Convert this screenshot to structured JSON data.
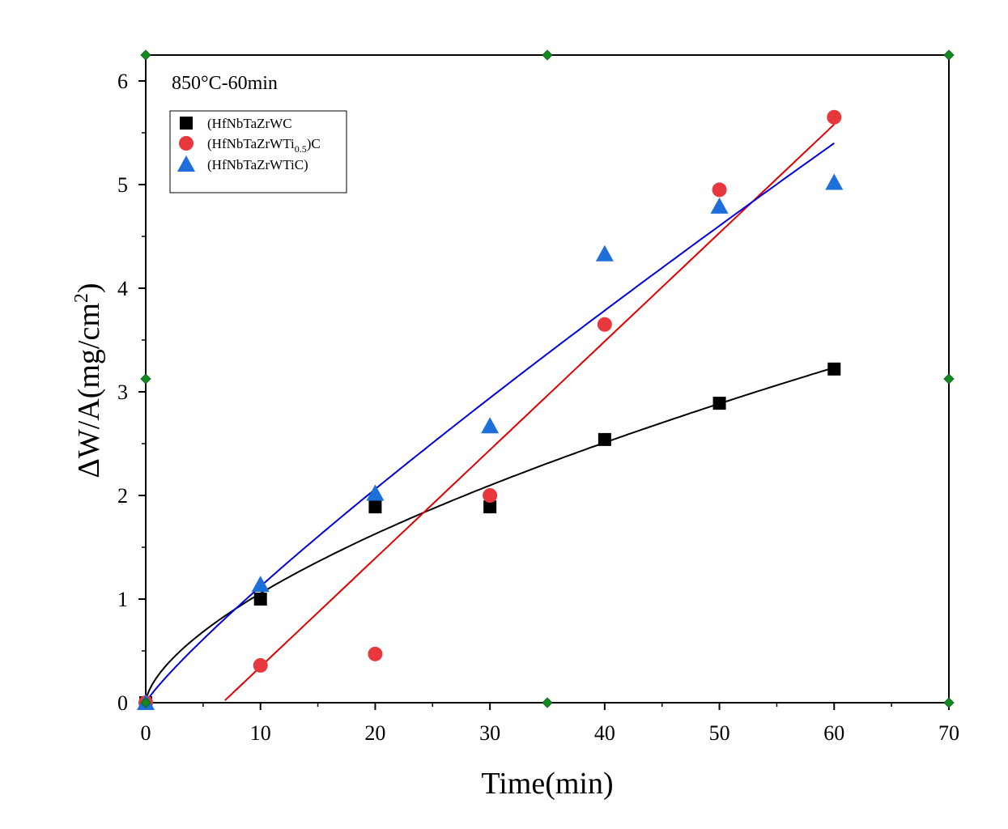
{
  "chart_data": {
    "type": "scatter",
    "annotation": "850°C-60min",
    "xlabel": "Time(min)",
    "ylabel_main": "ΔW/A(mg/cm",
    "ylabel_sup": "2",
    "ylabel_close": ")",
    "xlim": [
      0,
      70
    ],
    "ylim": [
      0,
      6.25
    ],
    "xticks": [
      0,
      10,
      20,
      30,
      40,
      50,
      60,
      70
    ],
    "yticks": [
      0,
      1,
      2,
      3,
      4,
      5,
      6
    ],
    "grid": false,
    "legend_position": "top-left",
    "series": [
      {
        "name": "(HfNbTaZrWC",
        "marker": "square",
        "color": "#000000",
        "x": [
          0,
          10,
          20,
          30,
          40,
          50,
          60
        ],
        "y": [
          0,
          1.0,
          1.89,
          1.89,
          2.54,
          2.89,
          3.22
        ],
        "fit": "power",
        "fit_color": "#000000"
      },
      {
        "name": "(HfNbTaZrWTi",
        "name_sub": "0.5",
        "name_suffix": ")C",
        "marker": "circle",
        "color": "#e8383d",
        "x": [
          0,
          10,
          20,
          30,
          40,
          50,
          60
        ],
        "y": [
          0,
          0.36,
          0.47,
          2.0,
          3.65,
          4.95,
          5.65
        ],
        "fit": "linear",
        "fit_color": "#e00000"
      },
      {
        "name": "(HfNbTaZrWTiC)",
        "marker": "triangle",
        "color": "#1e6fd9",
        "x": [
          0,
          10,
          20,
          30,
          40,
          50,
          60
        ],
        "y": [
          0,
          1.14,
          2.02,
          2.67,
          4.33,
          4.79,
          5.02
        ],
        "fit": "power",
        "fit_color": "#0000e0"
      }
    ]
  }
}
